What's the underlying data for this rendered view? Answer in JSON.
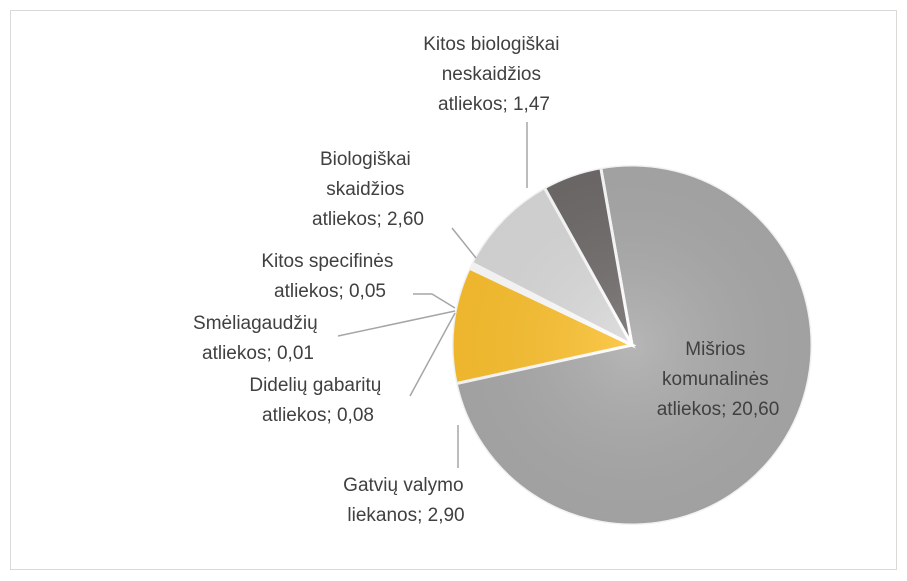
{
  "chart_data": {
    "type": "pie",
    "values": [
      20.6,
      2.9,
      0.08,
      0.01,
      0.05,
      2.6,
      1.47
    ],
    "value_labels": [
      "Mišrios komunalinės atliekos; 20,60",
      "Gatvių valymo liekanos; 2,90",
      "Didelių gabaritų atliekos; 0,08",
      "Smėliagaudžių atliekos; 0,01",
      "Kitos specifinės atliekos; 0,05",
      "Biologiškai skaidžios atliekos; 2,60",
      "Kitos biologiškai neskaidžios atliekos; 1,47"
    ],
    "colors": [
      "#a9a9a9",
      "#fbc02d",
      "#f2f2f2",
      "#e6e6e6",
      "#d0d0d0",
      "#d9d9d9",
      "#6f6a6a"
    ]
  }
}
